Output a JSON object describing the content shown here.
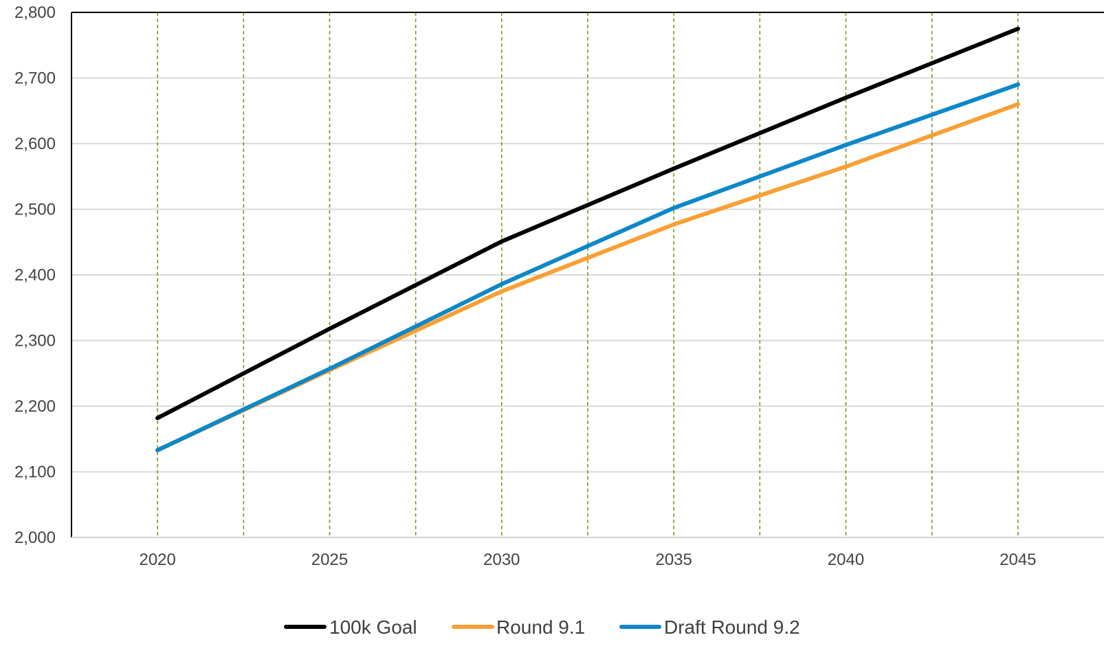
{
  "chart_data": {
    "type": "line",
    "title": "",
    "xlabel": "",
    "ylabel": "",
    "x": [
      2020,
      2025,
      2030,
      2035,
      2040,
      2045
    ],
    "xlim": [
      2017.5,
      2047.5
    ],
    "ylim": [
      2000,
      2800
    ],
    "yticks": [
      2000,
      2100,
      2200,
      2300,
      2400,
      2500,
      2600,
      2700,
      2800
    ],
    "yticks_labels": [
      "2,000",
      "2,100",
      "2,200",
      "2,300",
      "2,400",
      "2,500",
      "2,600",
      "2,700",
      "2,800"
    ],
    "xticks": [
      2020,
      2025,
      2030,
      2035,
      2040,
      2045
    ],
    "xticks_labels": [
      "2020",
      "2025",
      "2030",
      "2035",
      "2040",
      "2045"
    ],
    "vertical_gridlines": [
      2020,
      2022.5,
      2025,
      2027.5,
      2030,
      2032.5,
      2035,
      2037.5,
      2040,
      2042.5,
      2045
    ],
    "horizontal_grid": true,
    "legend_position": "bottom-center",
    "series": [
      {
        "name": "100k Goal",
        "color": "#000000",
        "values": [
          2182,
          2318,
          2451,
          2562,
          2670,
          2775
        ]
      },
      {
        "name": "Round 9.1",
        "color": "#f7a034",
        "values": [
          2133,
          2255,
          2375,
          2477,
          2565,
          2660
        ]
      },
      {
        "name": "Draft Round 9.2",
        "color": "#0d87c9",
        "values": [
          2133,
          2257,
          2386,
          2502,
          2598,
          2690
        ]
      }
    ],
    "colors": {
      "horizontal_grid": "#d9d9d9",
      "vertical_grid": "#7a9a1a",
      "axis": "#000000",
      "tick_text": "#444444"
    }
  }
}
